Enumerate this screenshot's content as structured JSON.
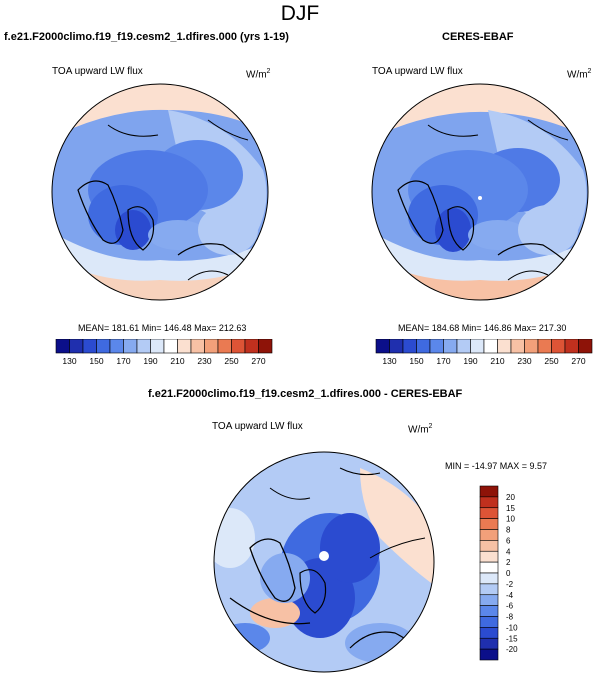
{
  "page_title": "DJF",
  "panel_model": {
    "title": "f.e21.F2000climo.f19_f19.cesm2_1.dfires.000 (yrs 1-19)",
    "variable": "TOA upward LW flux",
    "units": "W/m",
    "units_sup": "2",
    "stats": "MEAN= 181.61  Min= 146.48  Max= 212.63"
  },
  "panel_obs": {
    "title": "CERES-EBAF",
    "variable": "TOA upward LW flux",
    "units": "W/m",
    "units_sup": "2",
    "stats": "MEAN= 184.68  Min= 146.86  Max= 217.30"
  },
  "panel_diff": {
    "title": "f.e21.F2000climo.f19_f19.cesm2_1.dfires.000 - CERES-EBAF",
    "variable": "TOA upward LW flux",
    "units": "W/m",
    "units_sup": "2",
    "stats": "MIN = -14.97 MAX =   9.57"
  },
  "abs_colorbar": {
    "labels": [
      "130",
      "150",
      "170",
      "190",
      "210",
      "230",
      "250",
      "270"
    ],
    "colors": [
      "#0b0f8a",
      "#1f2fae",
      "#2b4bd0",
      "#3f6ae0",
      "#5b87ea",
      "#86aaf0",
      "#b3cbf5",
      "#dce8f9",
      "#ffffff",
      "#fbe0d0",
      "#f7c1a5",
      "#f2a07a",
      "#ea7a52",
      "#dd5436",
      "#c0301e",
      "#8e1308"
    ]
  },
  "diff_colorbar": {
    "labels": [
      "20",
      "15",
      "10",
      "8",
      "6",
      "4",
      "2",
      "0",
      "-2",
      "-4",
      "-6",
      "-8",
      "-10",
      "-15",
      "-20"
    ],
    "colors": [
      "#8e1308",
      "#c0301e",
      "#dd5436",
      "#ea7a52",
      "#f2a07a",
      "#f7c1a5",
      "#fbe0d0",
      "#ffffff",
      "#dce8f9",
      "#b3cbf5",
      "#86aaf0",
      "#5b87ea",
      "#3f6ae0",
      "#2b4bd0",
      "#1f2fae",
      "#0b0f8a"
    ]
  }
}
